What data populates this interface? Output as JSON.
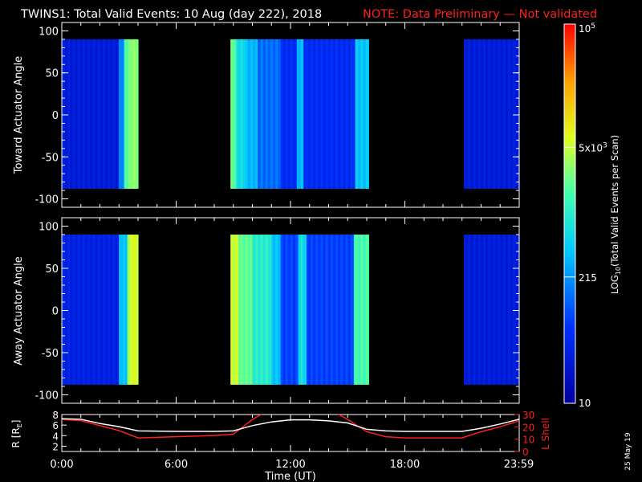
{
  "title": "TWINS1: Total Valid Events: 10 Aug (day 222), 2018",
  "note": "NOTE: Data Preliminary — Not validated",
  "stamp": "25 May 19",
  "colors": {
    "background": "#000000",
    "axis": "#ffffff",
    "note": "#ff2020",
    "lshell": "#ff2020",
    "rline": "#ffffff"
  },
  "colorbar": {
    "label_prefix": "LOG",
    "label_sub": "10",
    "label_suffix": "(Total Valid Events per Scan)",
    "ticks": [
      {
        "value": 10,
        "text": "10"
      },
      {
        "value": 215,
        "text": "215"
      },
      {
        "value": 5000,
        "text": "5x10",
        "sup": "3"
      },
      {
        "value": 100000,
        "text": "10",
        "sup": "5"
      }
    ],
    "range": [
      10,
      100000
    ]
  },
  "xaxis": {
    "label": "Time (UT)",
    "ticks": [
      {
        "hour": 0,
        "text": "0:00"
      },
      {
        "hour": 6,
        "text": "6:00"
      },
      {
        "hour": 12,
        "text": "12:00"
      },
      {
        "hour": 18,
        "text": "18:00"
      },
      {
        "hour": 23.98,
        "text": "23:59"
      }
    ]
  },
  "panels": [
    {
      "ylabel": "Toward Actuator Angle",
      "yticks": [
        "100",
        "50",
        "0",
        "-50",
        "-100"
      ]
    },
    {
      "ylabel": "Away Actuator Angle",
      "yticks": [
        "100",
        "50",
        "0",
        "-50",
        "-100"
      ]
    }
  ],
  "orbit_axis": {
    "left_label": "R [R",
    "left_sub": "E",
    "left_suffix": "]",
    "left_ticks": [
      "8",
      "6",
      "4",
      "2"
    ],
    "right_label": "L Shell",
    "right_ticks": [
      "30",
      "20",
      "10",
      "0"
    ]
  },
  "chart_data": [
    {
      "type": "heatmap",
      "title": "TWINS1: Total Valid Events: 10 Aug (day 222), 2018",
      "ylabel": "Toward Actuator Angle",
      "xlabel": "",
      "xlim": [
        0,
        24
      ],
      "ylim": [
        -110,
        110
      ],
      "zscale": "log",
      "zlim": [
        10,
        100000
      ],
      "angle_range": [
        -88,
        90
      ],
      "segments": [
        {
          "start": 0.0,
          "end": 4.0,
          "level": 0.12,
          "bands": [
            {
              "start": 3.0,
              "end": 3.3,
              "level": 0.32
            },
            {
              "start": 3.3,
              "end": 3.55,
              "level": 0.58
            },
            {
              "start": 3.55,
              "end": 4.0,
              "level": 0.62
            }
          ]
        },
        {
          "start": 8.85,
          "end": 16.1,
          "level": 0.18,
          "bands": [
            {
              "start": 8.85,
              "end": 9.1,
              "level": 0.58
            },
            {
              "start": 9.1,
              "end": 9.6,
              "level": 0.45
            },
            {
              "start": 9.6,
              "end": 10.3,
              "level": 0.38
            },
            {
              "start": 10.3,
              "end": 11.5,
              "level": 0.28
            },
            {
              "start": 12.3,
              "end": 12.7,
              "level": 0.38
            },
            {
              "start": 15.4,
              "end": 16.1,
              "level": 0.4
            }
          ]
        },
        {
          "start": 21.1,
          "end": 24.0,
          "level": 0.12,
          "bands": []
        }
      ]
    },
    {
      "type": "heatmap",
      "ylabel": "Away Actuator Angle",
      "xlabel": "",
      "xlim": [
        0,
        24
      ],
      "ylim": [
        -110,
        110
      ],
      "zscale": "log",
      "zlim": [
        10,
        100000
      ],
      "angle_range": [
        -88,
        90
      ],
      "segments": [
        {
          "start": 0.0,
          "end": 4.0,
          "level": 0.14,
          "bands": [
            {
              "start": 3.0,
              "end": 3.4,
              "level": 0.4
            },
            {
              "start": 3.4,
              "end": 3.6,
              "level": 0.62
            },
            {
              "start": 3.6,
              "end": 4.0,
              "level": 0.7
            }
          ]
        },
        {
          "start": 8.85,
          "end": 16.1,
          "level": 0.22,
          "bands": [
            {
              "start": 8.85,
              "end": 9.3,
              "level": 0.68
            },
            {
              "start": 9.3,
              "end": 10.0,
              "level": 0.58
            },
            {
              "start": 10.0,
              "end": 11.0,
              "level": 0.5
            },
            {
              "start": 11.0,
              "end": 11.5,
              "level": 0.4
            },
            {
              "start": 12.4,
              "end": 12.8,
              "level": 0.45
            },
            {
              "start": 15.3,
              "end": 16.1,
              "level": 0.55
            }
          ]
        },
        {
          "start": 21.1,
          "end": 24.0,
          "level": 0.12,
          "bands": []
        }
      ]
    },
    {
      "type": "line",
      "xlabel": "Time (UT)",
      "xlim": [
        0,
        24
      ],
      "series": [
        {
          "axis": "R",
          "ylim": [
            1,
            8
          ],
          "x": [
            0,
            1,
            2,
            3,
            4,
            6,
            8,
            9,
            10,
            11,
            12,
            13,
            14,
            15,
            16,
            17,
            18,
            20,
            21,
            22,
            23,
            24
          ],
          "y": [
            7.2,
            7.1,
            6.3,
            5.7,
            4.9,
            4.8,
            4.8,
            4.9,
            5.9,
            6.6,
            7.0,
            7.0,
            6.8,
            6.4,
            5.2,
            4.9,
            4.8,
            4.8,
            4.8,
            5.4,
            6.2,
            7.1
          ]
        },
        {
          "axis": "L",
          "ylim": [
            0,
            30
          ],
          "x": [
            0,
            1,
            2,
            3,
            4,
            6,
            8,
            9,
            9.5,
            10,
            10.8,
            14.2,
            15,
            16,
            17,
            18,
            20,
            21,
            22,
            23,
            24
          ],
          "y": [
            26,
            25,
            21,
            17,
            11,
            12,
            13,
            14,
            20,
            26,
            33,
            33,
            26,
            16,
            12,
            11,
            11,
            11,
            16,
            20,
            25
          ]
        }
      ]
    }
  ]
}
